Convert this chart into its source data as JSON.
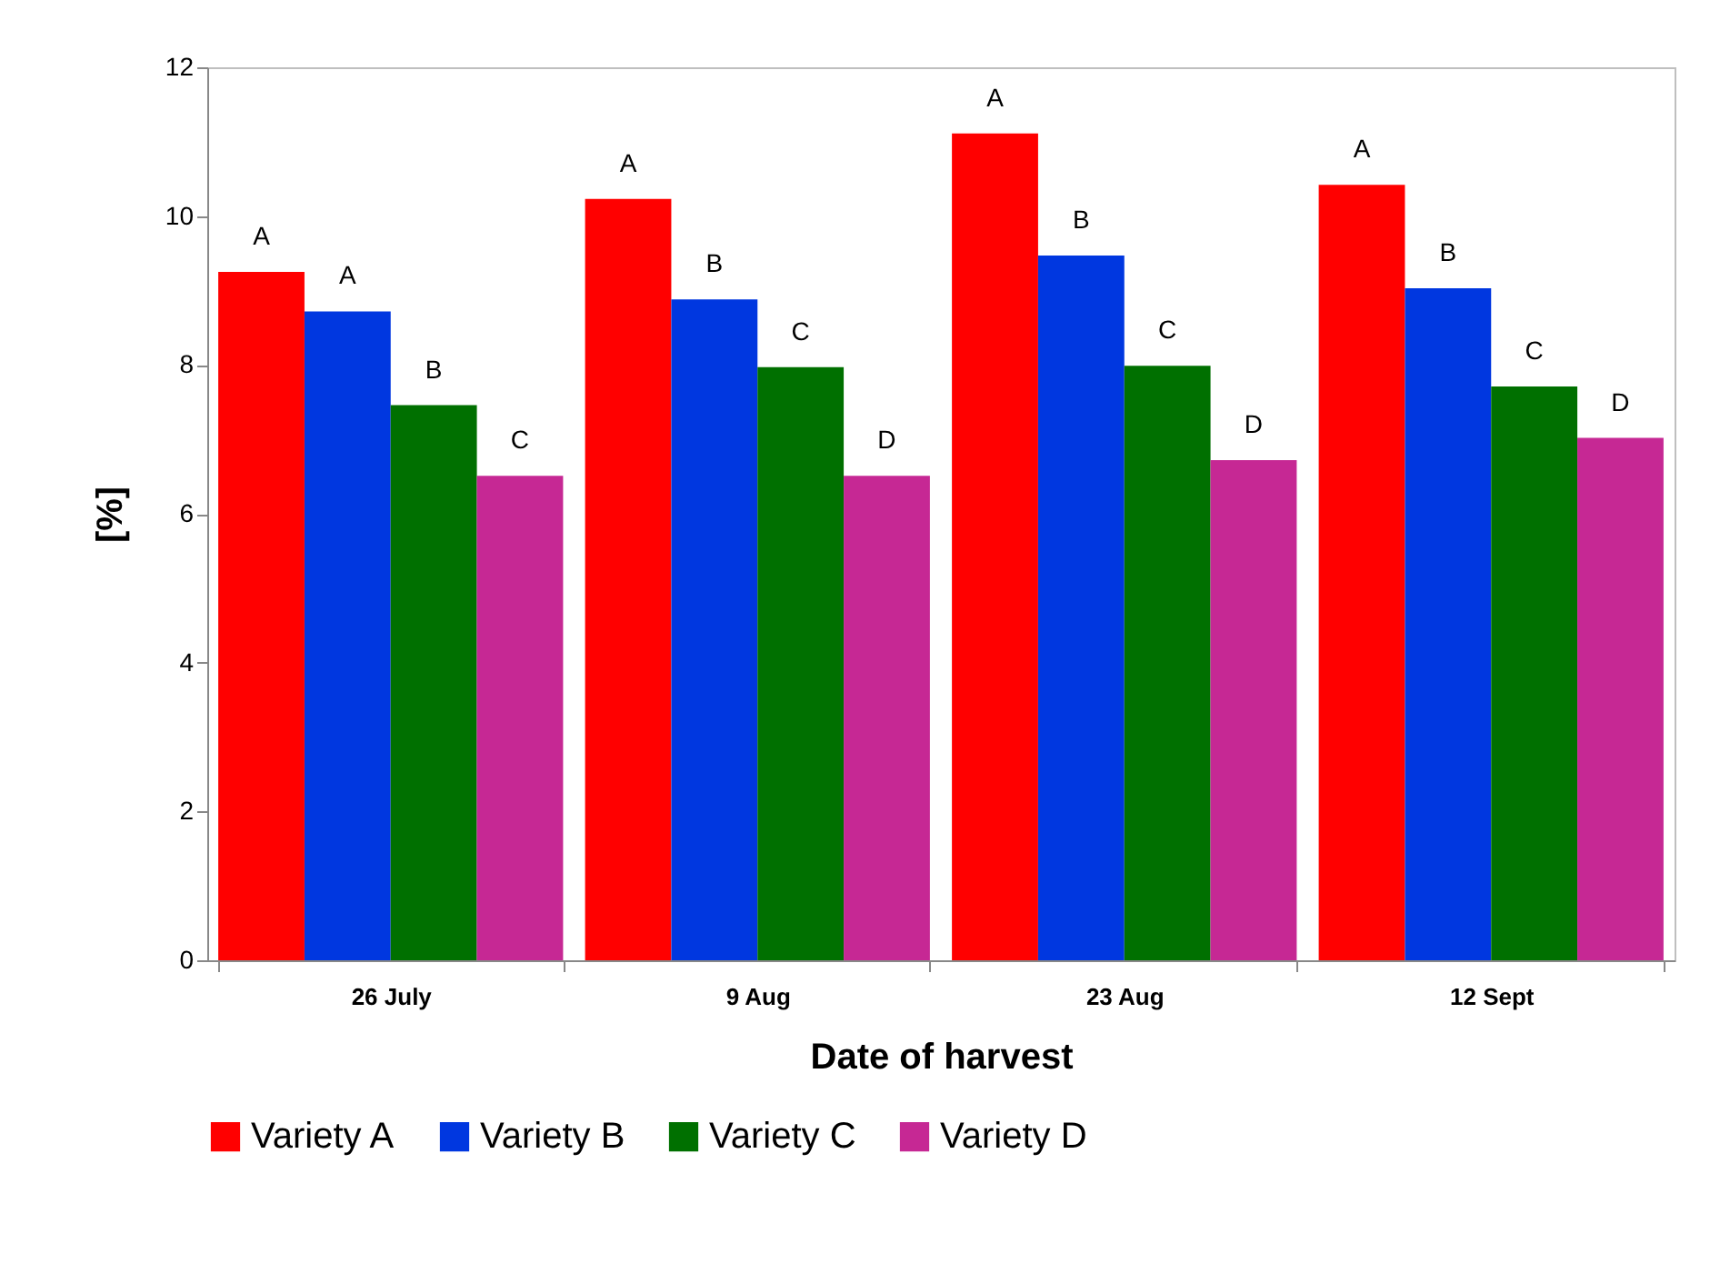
{
  "chart_data": {
    "type": "bar",
    "xlabel": "Date of harvest",
    "ylabel": "[%]",
    "categories": [
      "26 July",
      "9 Aug",
      "23 Aug",
      "12 Sept"
    ],
    "series": [
      {
        "name": "Variety A",
        "color": "#ff0000",
        "values": [
          9.25,
          10.23,
          11.11,
          10.42
        ],
        "value_labels": [
          "A",
          "A",
          "A",
          "A"
        ]
      },
      {
        "name": "Variety B",
        "color": "#0037e0",
        "values": [
          8.72,
          8.88,
          9.47,
          9.03
        ],
        "value_labels": [
          "A",
          "B",
          "B",
          "B"
        ]
      },
      {
        "name": "Variety C",
        "color": "#007000",
        "values": [
          7.46,
          7.97,
          7.99,
          7.71
        ],
        "value_labels": [
          "B",
          "C",
          "C",
          "C"
        ]
      },
      {
        "name": "Variety D",
        "color": "#c62894",
        "values": [
          6.51,
          6.51,
          6.72,
          7.02
        ],
        "value_labels": [
          "C",
          "D",
          "D",
          "D"
        ]
      }
    ],
    "ylim": [
      0,
      12
    ],
    "yticks": [
      0,
      2,
      4,
      6,
      8,
      10,
      12
    ],
    "grid": false,
    "legend": "bottom"
  }
}
